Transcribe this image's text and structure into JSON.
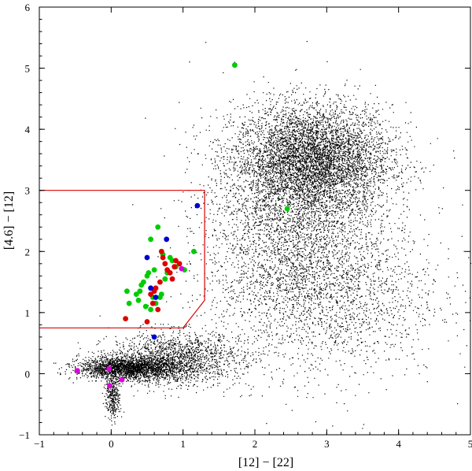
{
  "chart_data": {
    "type": "scatter",
    "title": "",
    "xlabel": "[12] − [22]",
    "ylabel": "[4.6] − [12]",
    "xlim": [
      -1,
      5
    ],
    "ylim": [
      -1,
      6
    ],
    "x_ticks": [
      -1,
      0,
      1,
      2,
      3,
      4,
      5
    ],
    "y_ticks": [
      -1,
      0,
      1,
      2,
      3,
      4,
      5,
      6
    ],
    "x_tick_labels": [
      "−1",
      "0",
      "1",
      "2",
      "3",
      "4",
      "5"
    ],
    "y_tick_labels": [
      "−1",
      "0",
      "1",
      "2",
      "3",
      "4",
      "5",
      "6"
    ],
    "grid": false,
    "legend": "none",
    "selection_box": {
      "color": "#dd0000",
      "outline": [
        [
          -1,
          3.0
        ],
        [
          1.3,
          3.0
        ],
        [
          1.3,
          1.2
        ],
        [
          1.0,
          0.75
        ],
        [
          -1,
          0.75
        ]
      ]
    },
    "background_field": {
      "color": "#000000",
      "clouds": [
        {
          "x": 2.8,
          "y": 3.5,
          "sx": 0.55,
          "sy": 0.45,
          "n": 5200
        },
        {
          "x": 2.5,
          "y": 2.4,
          "sx": 0.6,
          "sy": 0.85,
          "n": 2600
        },
        {
          "x": 0.25,
          "y": 0.1,
          "sx": 0.35,
          "sy": 0.09,
          "n": 2200
        },
        {
          "x": 0.9,
          "y": 0.25,
          "sx": 0.45,
          "sy": 0.22,
          "n": 1600
        },
        {
          "x": 0.02,
          "y": -0.35,
          "sx": 0.05,
          "sy": 0.2,
          "n": 350
        },
        {
          "x": 3.0,
          "y": 1.3,
          "sx": 0.8,
          "sy": 0.7,
          "n": 1800
        }
      ]
    },
    "series": [
      {
        "color": "#00cc00",
        "x": [
          1.72,
          2.45,
          0.65,
          0.55,
          0.72,
          0.85,
          0.9,
          0.6,
          0.5,
          0.45,
          0.42,
          0.4,
          0.35,
          0.38,
          0.48,
          0.55,
          0.62,
          0.68,
          0.75,
          0.78,
          0.82,
          0.58,
          0.25,
          0.22,
          1.15,
          1.02,
          0.7,
          0.52
        ],
        "y": [
          5.05,
          2.7,
          2.4,
          2.2,
          1.95,
          1.85,
          1.75,
          1.7,
          1.6,
          1.5,
          1.45,
          1.35,
          1.3,
          1.2,
          1.1,
          1.05,
          1.15,
          1.25,
          1.55,
          1.65,
          1.9,
          1.25,
          1.15,
          1.35,
          2.0,
          1.7,
          1.3,
          1.65
        ]
      },
      {
        "color": "#dd0000",
        "x": [
          0.7,
          0.72,
          0.75,
          0.78,
          0.82,
          0.85,
          0.88,
          0.9,
          0.68,
          0.62,
          0.6,
          0.55,
          0.5,
          0.2,
          0.95,
          0.65,
          0.58
        ],
        "y": [
          2.0,
          1.9,
          1.8,
          1.7,
          1.65,
          1.55,
          1.75,
          1.85,
          1.5,
          1.4,
          1.35,
          1.3,
          0.85,
          0.9,
          1.8,
          1.05,
          1.15
        ]
      },
      {
        "color": "#0000cc",
        "x": [
          1.2,
          0.77,
          0.5,
          0.55,
          0.62,
          0.6
        ],
        "y": [
          2.75,
          2.2,
          1.9,
          1.4,
          1.25,
          0.6
        ]
      },
      {
        "color": "#dd00dd",
        "x": [
          -0.47,
          -0.03,
          -0.02,
          0.15,
          0.98
        ],
        "y": [
          0.05,
          0.08,
          -0.2,
          -0.1,
          1.72
        ]
      }
    ]
  }
}
